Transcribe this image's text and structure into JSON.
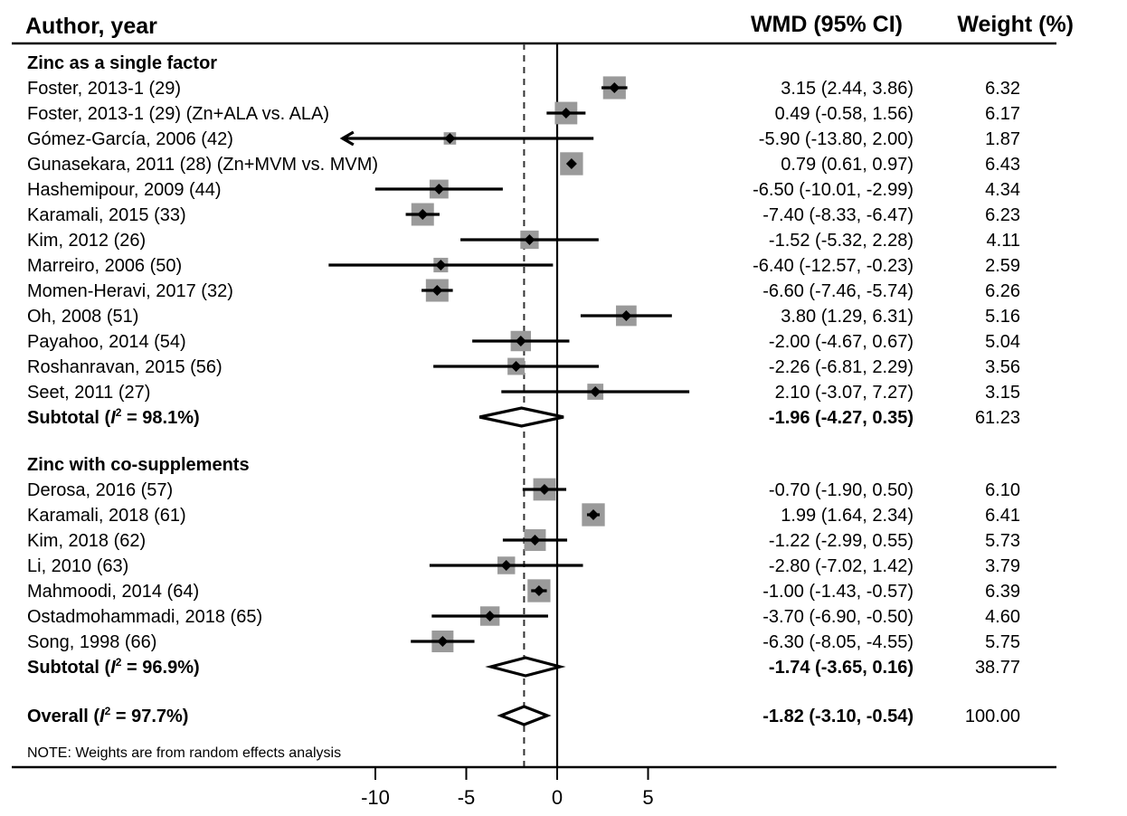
{
  "chart_data": {
    "type": "forest",
    "headers": {
      "study": "Author, year",
      "effect": "WMD (95% CI)",
      "weight": "Weight (%)"
    },
    "xaxis": {
      "ticks": [
        -10,
        -5,
        0,
        5
      ],
      "tick_labels": [
        "-10",
        "-5",
        "0",
        "5"
      ],
      "range": [
        -11.5,
        13.5
      ]
    },
    "null_line": 0,
    "overall_line": -1.82,
    "groups": [
      {
        "label": "Zinc as a single factor",
        "studies": [
          {
            "name": "Foster, 2013-1 (29)",
            "est": 3.15,
            "lo": 2.44,
            "hi": 3.86,
            "ci_text": "3.15 (2.44, 3.86)",
            "weight": 6.32,
            "weight_text": "6.32"
          },
          {
            "name": "Foster, 2013-1 (29) (Zn+ALA vs. ALA)",
            "est": 0.49,
            "lo": -0.58,
            "hi": 1.56,
            "ci_text": "0.49 (-0.58, 1.56)",
            "weight": 6.17,
            "weight_text": "6.17"
          },
          {
            "name": "Gómez-García, 2006 (42)",
            "est": -5.9,
            "lo": -13.8,
            "hi": 2.0,
            "ci_text": "-5.90 (-13.80, 2.00)",
            "weight": 1.87,
            "weight_text": "1.87",
            "arrow_left": true
          },
          {
            "name": "Gunasekara, 2011 (28) (Zn+MVM vs. MVM)",
            "est": 0.79,
            "lo": 0.61,
            "hi": 0.97,
            "ci_text": "0.79 (0.61, 0.97)",
            "weight": 6.43,
            "weight_text": "6.43"
          },
          {
            "name": "Hashemipour, 2009 (44)",
            "est": -6.5,
            "lo": -10.01,
            "hi": -2.99,
            "ci_text": "-6.50 (-10.01, -2.99)",
            "weight": 4.34,
            "weight_text": "4.34"
          },
          {
            "name": "Karamali, 2015 (33)",
            "est": -7.4,
            "lo": -8.33,
            "hi": -6.47,
            "ci_text": "-7.40 (-8.33, -6.47)",
            "weight": 6.23,
            "weight_text": "6.23"
          },
          {
            "name": "Kim, 2012 (26)",
            "est": -1.52,
            "lo": -5.32,
            "hi": 2.28,
            "ci_text": "-1.52 (-5.32, 2.28)",
            "weight": 4.11,
            "weight_text": "4.11"
          },
          {
            "name": "Marreiro, 2006 (50)",
            "est": -6.4,
            "lo": -12.57,
            "hi": -0.23,
            "ci_text": "-6.40 (-12.57, -0.23)",
            "weight": 2.59,
            "weight_text": "2.59"
          },
          {
            "name": "Momen-Heravi, 2017 (32)",
            "est": -6.6,
            "lo": -7.46,
            "hi": -5.74,
            "ci_text": "-6.60 (-7.46, -5.74)",
            "weight": 6.26,
            "weight_text": "6.26"
          },
          {
            "name": "Oh, 2008 (51)",
            "est": 3.8,
            "lo": 1.29,
            "hi": 6.31,
            "ci_text": "3.80 (1.29, 6.31)",
            "weight": 5.16,
            "weight_text": "5.16"
          },
          {
            "name": "Payahoo, 2014 (54)",
            "est": -2.0,
            "lo": -4.67,
            "hi": 0.67,
            "ci_text": "-2.00 (-4.67, 0.67)",
            "weight": 5.04,
            "weight_text": "5.04"
          },
          {
            "name": "Roshanravan, 2015 (56)",
            "est": -2.26,
            "lo": -6.81,
            "hi": 2.29,
            "ci_text": "-2.26 (-6.81, 2.29)",
            "weight": 3.56,
            "weight_text": "3.56"
          },
          {
            "name": "Seet, 2011 (27)",
            "est": 2.1,
            "lo": -3.07,
            "hi": 7.27,
            "ci_text": "2.10 (-3.07, 7.27)",
            "weight": 3.15,
            "weight_text": "3.15"
          }
        ],
        "subtotal": {
          "label_pre": "Subtotal (",
          "label_i": "I",
          "label_sup": "2",
          "label_post": " = 98.1%)",
          "est": -1.96,
          "lo": -4.27,
          "hi": 0.35,
          "ci_text": "-1.96 (-4.27, 0.35)",
          "weight_text": "61.23"
        }
      },
      {
        "label": "Zinc with co-supplements",
        "studies": [
          {
            "name": "Derosa, 2016 (57)",
            "est": -0.7,
            "lo": -1.9,
            "hi": 0.5,
            "ci_text": "-0.70 (-1.90, 0.50)",
            "weight": 6.1,
            "weight_text": "6.10"
          },
          {
            "name": "Karamali, 2018 (61)",
            "est": 1.99,
            "lo": 1.64,
            "hi": 2.34,
            "ci_text": "1.99 (1.64, 2.34)",
            "weight": 6.41,
            "weight_text": "6.41"
          },
          {
            "name": "Kim, 2018 (62)",
            "est": -1.22,
            "lo": -2.99,
            "hi": 0.55,
            "ci_text": "-1.22 (-2.99, 0.55)",
            "weight": 5.73,
            "weight_text": "5.73"
          },
          {
            "name": "Li, 2010 (63)",
            "est": -2.8,
            "lo": -7.02,
            "hi": 1.42,
            "ci_text": "-2.80 (-7.02, 1.42)",
            "weight": 3.79,
            "weight_text": "3.79"
          },
          {
            "name": "Mahmoodi, 2014 (64)",
            "est": -1.0,
            "lo": -1.43,
            "hi": -0.57,
            "ci_text": "-1.00 (-1.43, -0.57)",
            "weight": 6.39,
            "weight_text": "6.39"
          },
          {
            "name": "Ostadmohammadi, 2018 (65)",
            "est": -3.7,
            "lo": -6.9,
            "hi": -0.5,
            "ci_text": "-3.70 (-6.90, -0.50)",
            "weight": 4.6,
            "weight_text": "4.60"
          },
          {
            "name": "Song, 1998 (66)",
            "est": -6.3,
            "lo": -8.05,
            "hi": -4.55,
            "ci_text": "-6.30 (-8.05, -4.55)",
            "weight": 5.75,
            "weight_text": "5.75"
          }
        ],
        "subtotal": {
          "label_pre": "Subtotal (",
          "label_i": "I",
          "label_sup": "2",
          "label_post": " = 96.9%)",
          "est": -1.74,
          "lo": -3.65,
          "hi": 0.16,
          "ci_text": "-1.74 (-3.65, 0.16)",
          "weight_text": "38.77"
        }
      }
    ],
    "overall": {
      "label_pre": "Overall (",
      "label_i": "I",
      "label_sup": "2",
      "label_post": " = 97.7%)",
      "est": -1.82,
      "lo": -3.1,
      "hi": -0.54,
      "ci_text": "-1.82 (-3.10, -0.54)",
      "weight_text": "100.00"
    },
    "note": "NOTE: Weights are from random effects analysis",
    "colors": {
      "box": "#9a9a9a",
      "line": "#000000"
    }
  }
}
